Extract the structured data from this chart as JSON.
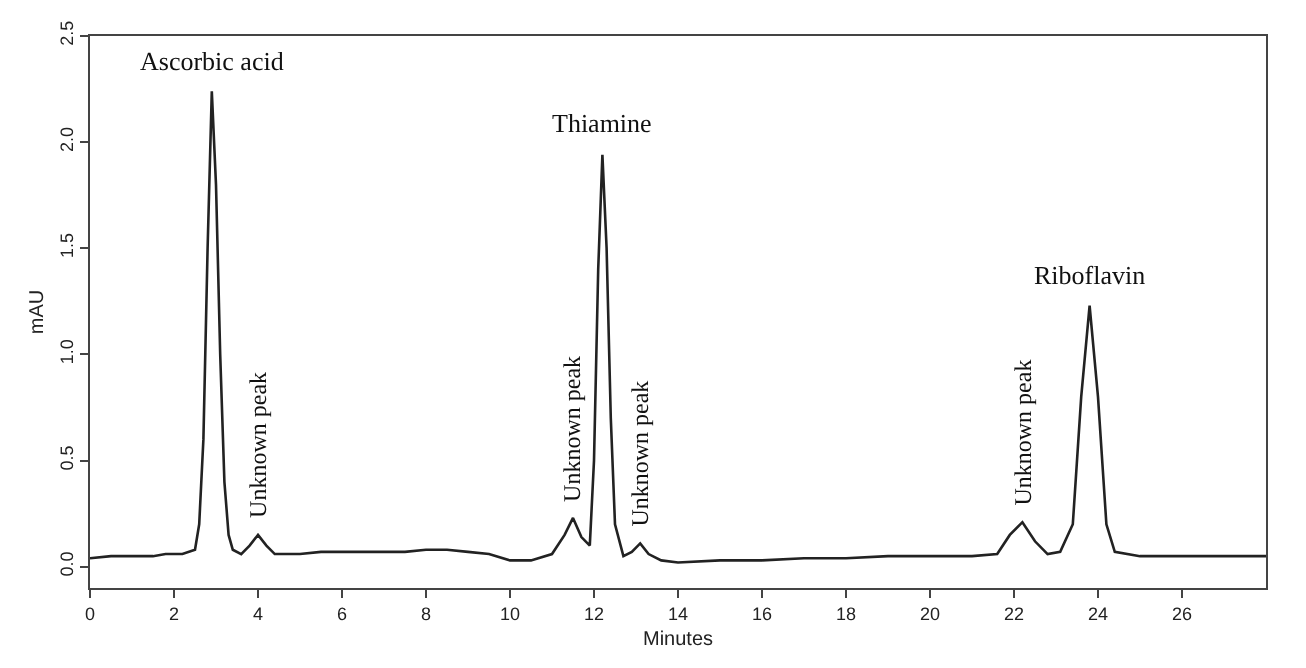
{
  "chart_data": {
    "type": "line",
    "xlabel": "Minutes",
    "ylabel": "mAU",
    "xlim": [
      0,
      28
    ],
    "xticks": [
      0,
      2,
      4,
      6,
      8,
      10,
      12,
      14,
      16,
      18,
      20,
      22,
      24,
      26
    ],
    "ylim": [
      -0.1,
      2.5
    ],
    "yticks": [
      {
        "value": 0,
        "label": "0.0"
      },
      {
        "value": 0.5,
        "label": "0.5"
      },
      {
        "value": 1,
        "label": "1.0"
      },
      {
        "value": 1.5,
        "label": "1.5"
      },
      {
        "value": 2,
        "label": "2.0"
      },
      {
        "value": 2.5,
        "label": "2.5"
      }
    ],
    "marker": "none",
    "line_style": "solid",
    "series": [
      {
        "color": "#222222",
        "x": [
          0,
          0.5,
          1,
          1.5,
          1.8,
          2.2,
          2.5,
          2.6,
          2.7,
          2.8,
          2.9,
          3.0,
          3.1,
          3.2,
          3.3,
          3.4,
          3.6,
          3.8,
          4.0,
          4.2,
          4.4,
          5,
          5.5,
          6,
          6.5,
          7,
          7.5,
          8,
          8.5,
          9,
          9.5,
          10,
          10.5,
          11,
          11.3,
          11.5,
          11.7,
          11.9,
          12.0,
          12.1,
          12.2,
          12.3,
          12.4,
          12.5,
          12.7,
          12.9,
          13.1,
          13.3,
          13.6,
          14,
          15,
          16,
          17,
          18,
          19,
          20,
          21,
          21.6,
          21.9,
          22.2,
          22.5,
          22.8,
          23.1,
          23.4,
          23.6,
          23.8,
          24.0,
          24.2,
          24.4,
          25,
          26,
          27,
          28
        ],
        "values": [
          0.04,
          0.05,
          0.05,
          0.05,
          0.06,
          0.06,
          0.08,
          0.2,
          0.6,
          1.5,
          2.24,
          1.8,
          1.0,
          0.4,
          0.15,
          0.08,
          0.06,
          0.1,
          0.15,
          0.1,
          0.06,
          0.06,
          0.07,
          0.07,
          0.07,
          0.07,
          0.07,
          0.08,
          0.08,
          0.07,
          0.06,
          0.03,
          0.03,
          0.06,
          0.15,
          0.23,
          0.14,
          0.1,
          0.5,
          1.4,
          1.94,
          1.5,
          0.7,
          0.2,
          0.05,
          0.07,
          0.11,
          0.06,
          0.03,
          0.02,
          0.03,
          0.03,
          0.04,
          0.04,
          0.05,
          0.05,
          0.05,
          0.06,
          0.15,
          0.21,
          0.12,
          0.06,
          0.07,
          0.2,
          0.8,
          1.23,
          0.8,
          0.2,
          0.07,
          0.05,
          0.05,
          0.05,
          0.05
        ]
      }
    ],
    "annotations": [
      {
        "text": "Ascorbic acid",
        "x": 2.9,
        "y": 2.24
      },
      {
        "text": "Thiamine",
        "x": 12.2,
        "y": 1.94
      },
      {
        "text": "Riboflavin",
        "x": 23.8,
        "y": 1.23
      },
      {
        "text": "Unknown peak",
        "x": 4.0,
        "y": 0.15
      },
      {
        "text": "Unknown peak",
        "x": 11.5,
        "y": 0.23
      },
      {
        "text": "Unknown peak",
        "x": 13.1,
        "y": 0.11
      },
      {
        "text": "Unknown peak",
        "x": 22.2,
        "y": 0.21
      }
    ]
  }
}
